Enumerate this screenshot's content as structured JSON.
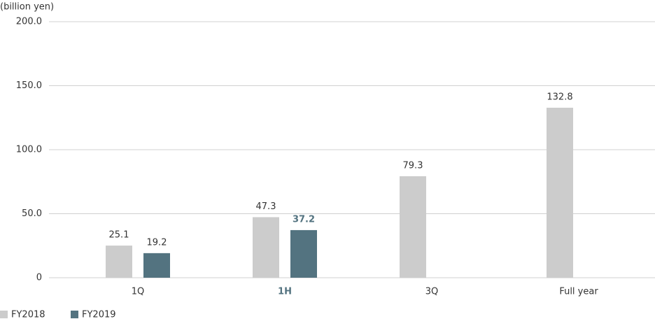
{
  "chart_data": {
    "type": "bar",
    "y_label": "(billion yen)",
    "categories": [
      "1Q",
      "1H",
      "3Q",
      "Full year"
    ],
    "highlight_category": "1H",
    "series": [
      {
        "name": "FY2018",
        "color": "#cccccc",
        "values": [
          25.1,
          47.3,
          79.3,
          132.8
        ]
      },
      {
        "name": "FY2019",
        "color": "#537380",
        "values": [
          19.2,
          37.2,
          null,
          null
        ]
      }
    ],
    "ylim": [
      0,
      200
    ],
    "yticks": [
      0,
      {
        "value": 50,
        "label": "50.0"
      },
      {
        "value": 100,
        "label": "100.0"
      },
      {
        "value": 150,
        "label": "150.0"
      },
      {
        "value": 200,
        "label": "200.0"
      }
    ],
    "grid": true
  }
}
